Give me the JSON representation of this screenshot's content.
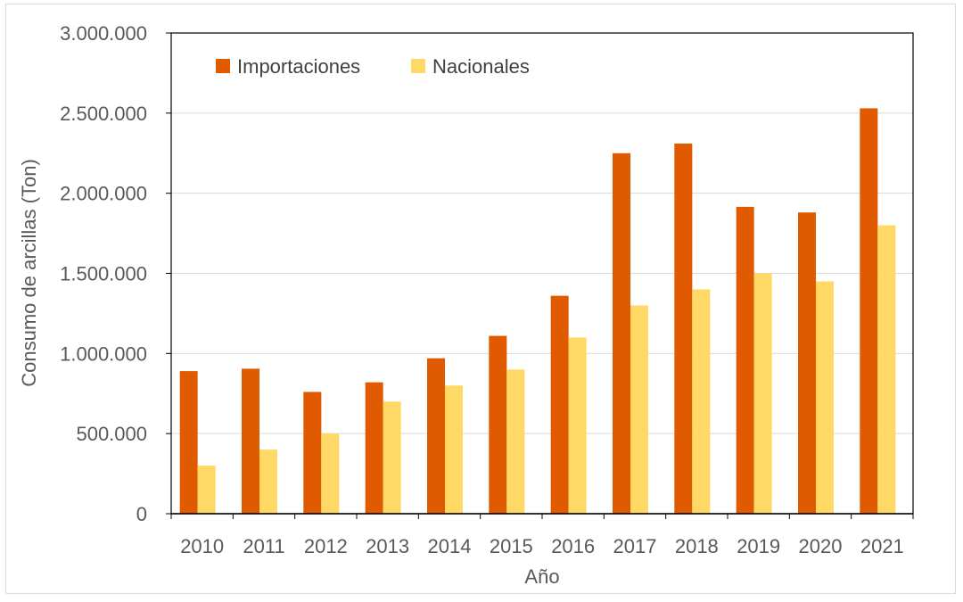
{
  "chart_data": {
    "type": "bar",
    "title": "",
    "xlabel": "Año",
    "ylabel": "Consumo de arcillas (Ton)",
    "ylim": [
      0,
      3000000
    ],
    "y_ticks": [
      0,
      500000,
      1000000,
      1500000,
      2000000,
      2500000,
      3000000
    ],
    "y_tick_labels": [
      "0",
      "500.000",
      "1.000.000",
      "1.500.000",
      "2.000.000",
      "2.500.000",
      "3.000.000"
    ],
    "categories": [
      "2010",
      "2011",
      "2012",
      "2013",
      "2014",
      "2015",
      "2016",
      "2017",
      "2018",
      "2019",
      "2020",
      "2021"
    ],
    "series": [
      {
        "name": "Importaciones",
        "color": "#e05a00",
        "values": [
          890000,
          905000,
          760000,
          820000,
          970000,
          1110000,
          1360000,
          2250000,
          2310000,
          1915000,
          1880000,
          2530000
        ]
      },
      {
        "name": "Nacionales",
        "color": "#ffd966",
        "values": [
          300000,
          400000,
          500000,
          700000,
          800000,
          900000,
          1100000,
          1300000,
          1400000,
          1500000,
          1450000,
          1800000
        ]
      }
    ],
    "grid": true,
    "legend_position": "top-left"
  }
}
